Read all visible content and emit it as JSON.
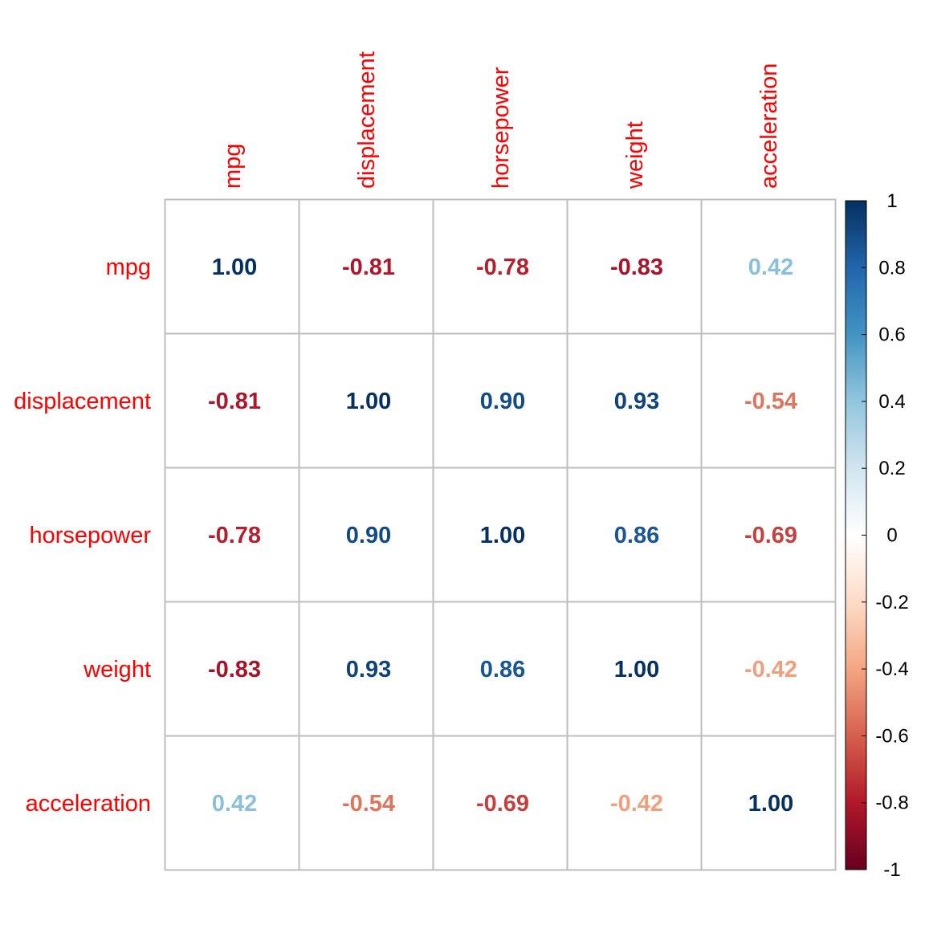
{
  "chart_data": {
    "type": "heatmap",
    "variables": [
      "mpg",
      "displacement",
      "horsepower",
      "weight",
      "acceleration"
    ],
    "matrix": [
      [
        1.0,
        -0.81,
        -0.78,
        -0.83,
        0.42
      ],
      [
        -0.81,
        1.0,
        0.9,
        0.93,
        -0.54
      ],
      [
        -0.78,
        0.9,
        1.0,
        0.86,
        -0.69
      ],
      [
        -0.83,
        0.93,
        0.86,
        1.0,
        -0.42
      ],
      [
        0.42,
        -0.54,
        -0.69,
        -0.42,
        1.0
      ]
    ],
    "value_format_decimals": 2,
    "colorbar": {
      "range": [
        -1,
        1
      ],
      "ticks": [
        1,
        0.8,
        0.6,
        0.4,
        0.2,
        0,
        -0.2,
        -0.4,
        -0.6,
        -0.8,
        -1
      ],
      "tick_labels": [
        "1",
        "0.8",
        "0.6",
        "0.4",
        "0.2",
        "0",
        "-0.2",
        "-0.4",
        "-0.6",
        "-0.8",
        "-1"
      ],
      "stops": [
        "#67001F",
        "#B2182B",
        "#D6604D",
        "#F4A582",
        "#FDDBC7",
        "#FFFFFF",
        "#D1E5F0",
        "#92C5DE",
        "#4393C3",
        "#2166AC",
        "#053061"
      ]
    },
    "label_color": "#FF0000",
    "grid_color": "#BEBEBE",
    "grid": true,
    "legend_placement": "right"
  }
}
